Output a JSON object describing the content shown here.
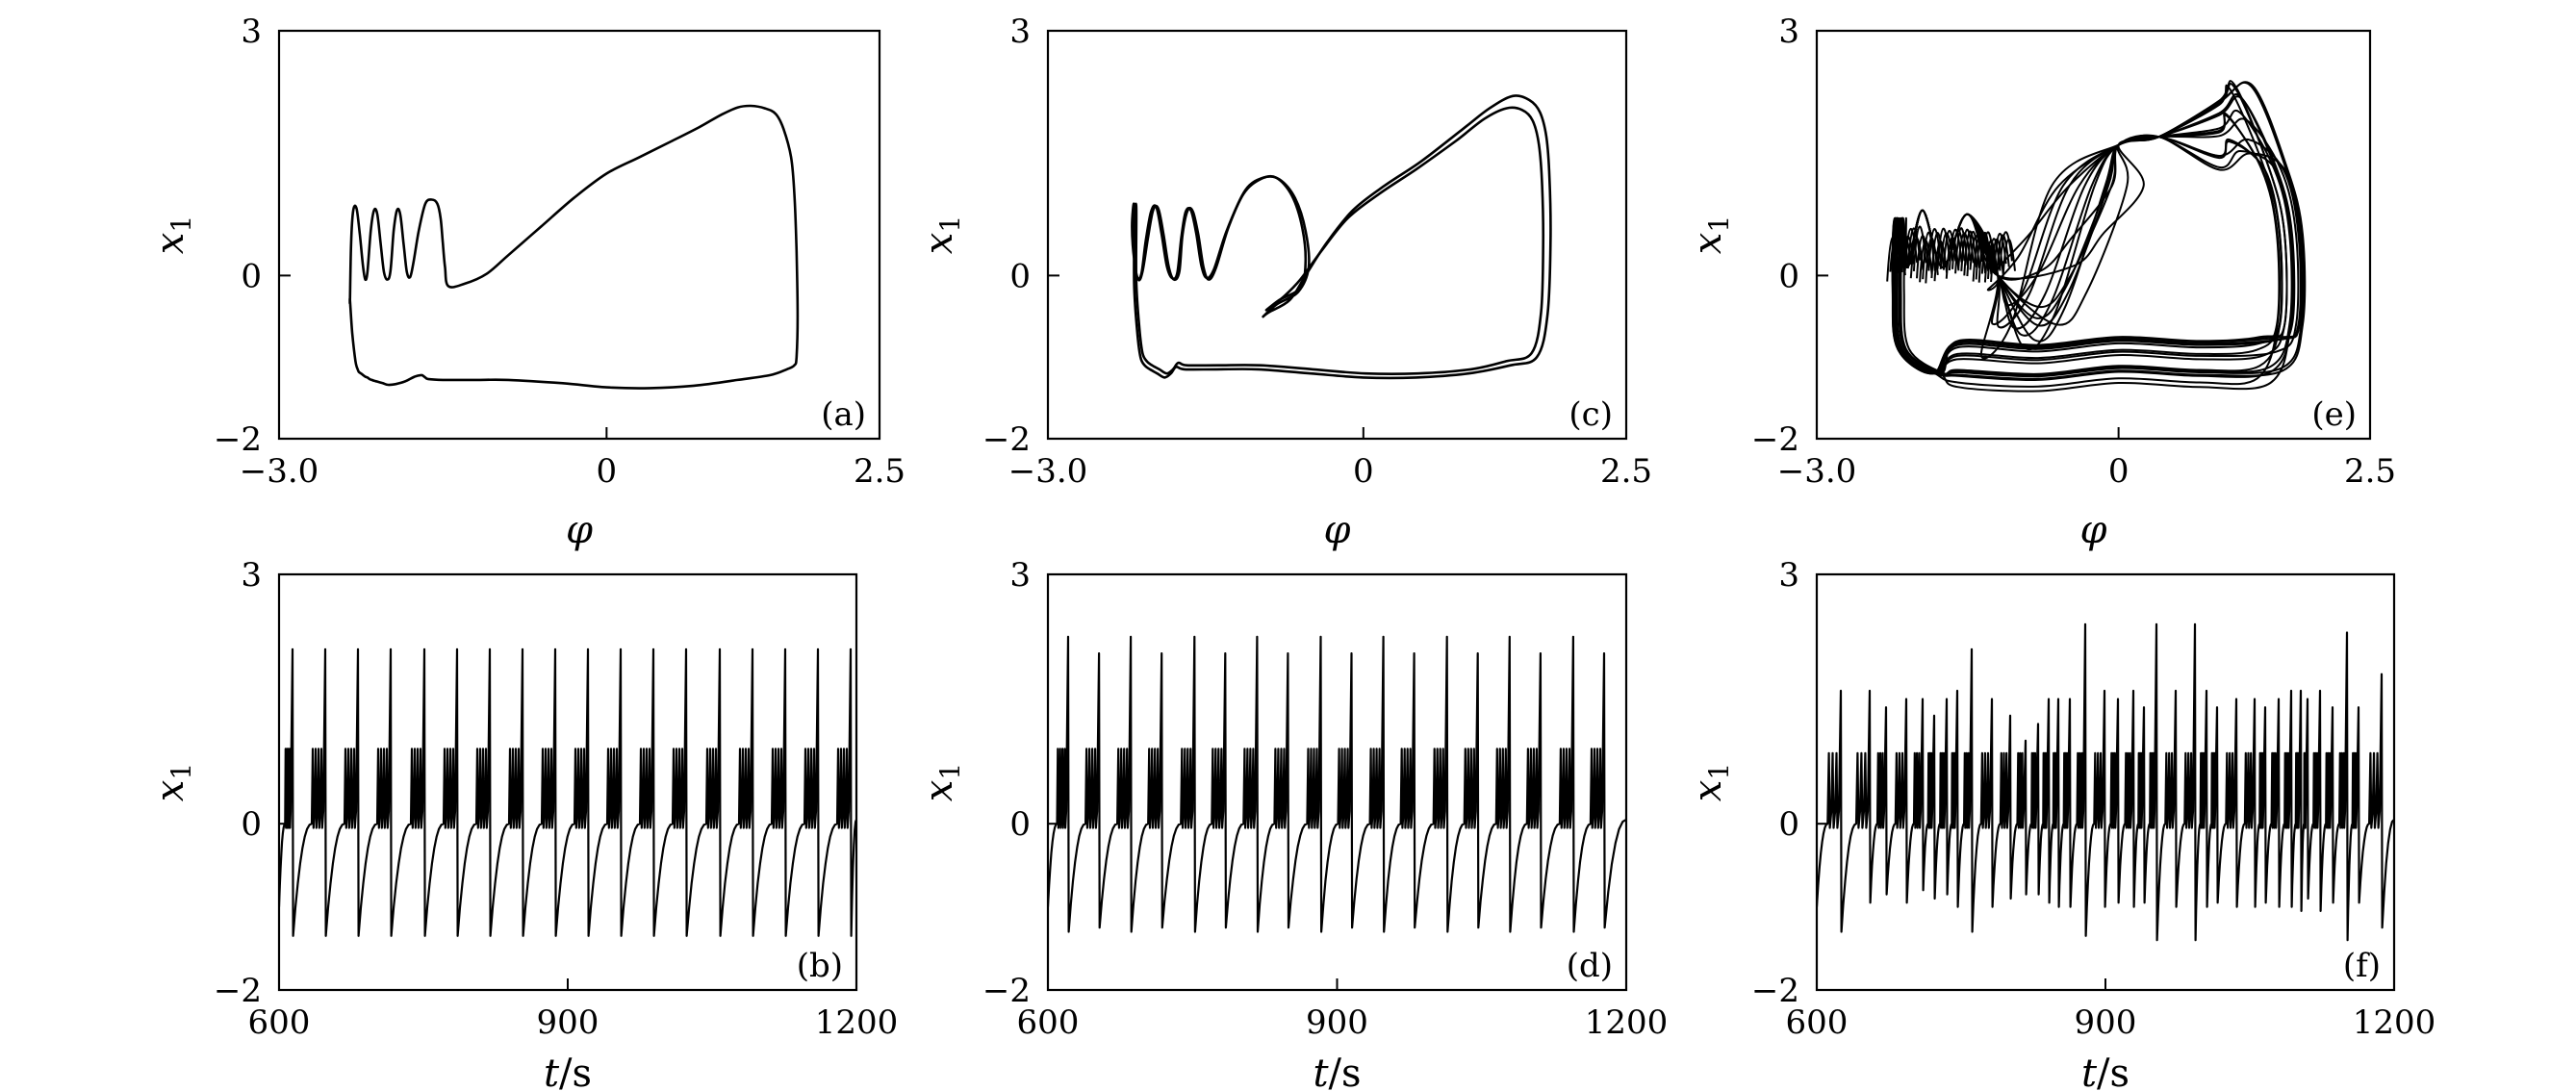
{
  "figure": {
    "background": "#ffffff",
    "line_color": "#000000",
    "panels_count": 6
  },
  "chart_data": [
    {
      "id": "a",
      "type": "line",
      "panel_label": "(a)",
      "kind": "phase",
      "xlabel": "φ",
      "ylabel_main": "x",
      "ylabel_sub": "1",
      "xlim": [
        -3.0,
        2.5
      ],
      "ylim": [
        -2,
        3
      ],
      "xtick_values": [
        -3.0,
        0,
        2.5
      ],
      "xtick_labels": [
        "−3.0",
        "0",
        "2.5"
      ],
      "ytick_values": [
        3,
        0,
        -2
      ],
      "ytick_labels": [
        "3",
        "0",
        "−2"
      ],
      "series": [
        {
          "x": [
            -2.35,
            -2.33,
            -2.3,
            -2.28,
            -2.27,
            -2.25,
            -2.23,
            -2.21,
            -2.19,
            -2.17,
            -2.15,
            -2.13,
            -2.1,
            -2.05,
            -2.0,
            -1.93,
            -1.85,
            -1.76,
            -1.7,
            -1.68,
            -1.66,
            -1.63,
            -1.5,
            -1.2,
            -0.9,
            -0.4,
            0.0,
            0.4,
            0.8,
            1.2,
            1.5,
            1.65,
            1.72,
            1.74,
            1.75,
            1.74,
            1.72,
            1.69,
            1.62,
            1.55,
            1.45,
            1.32,
            1.2,
            1.05,
            0.85,
            0.6,
            0.3,
            0.0,
            -0.3,
            -0.6,
            -0.9,
            -1.1,
            -1.3,
            -1.45,
            -1.48,
            -1.5,
            -1.52,
            -1.55,
            -1.6,
            -1.66,
            -1.72,
            -1.77,
            -1.8,
            -1.83,
            -1.86,
            -1.89,
            -1.92,
            -1.95,
            -1.98,
            -2.01,
            -2.04,
            -2.07,
            -2.1,
            -2.13,
            -2.16,
            -2.19,
            -2.21,
            -2.23,
            -2.26,
            -2.29,
            -2.32,
            -2.34,
            -2.35
          ],
          "y": [
            -0.3,
            -0.7,
            -1.05,
            -1.15,
            -1.18,
            -1.2,
            -1.22,
            -1.24,
            -1.25,
            -1.27,
            -1.28,
            -1.29,
            -1.3,
            -1.32,
            -1.34,
            -1.33,
            -1.3,
            -1.24,
            -1.22,
            -1.23,
            -1.25,
            -1.27,
            -1.28,
            -1.28,
            -1.28,
            -1.32,
            -1.37,
            -1.38,
            -1.35,
            -1.28,
            -1.22,
            -1.15,
            -1.1,
            -1.0,
            -0.5,
            0.3,
            1.0,
            1.45,
            1.8,
            1.98,
            2.05,
            2.08,
            2.06,
            1.97,
            1.82,
            1.65,
            1.45,
            1.25,
            0.95,
            0.6,
            0.25,
            0.02,
            -0.1,
            -0.13,
            0.1,
            0.4,
            0.7,
            0.88,
            0.93,
            0.88,
            0.55,
            0.15,
            -0.02,
            0.05,
            0.4,
            0.75,
            0.8,
            0.55,
            0.05,
            -0.05,
            0.05,
            0.4,
            0.75,
            0.8,
            0.55,
            0.05,
            -0.05,
            0.1,
            0.5,
            0.82,
            0.8,
            0.4,
            -0.3
          ]
        }
      ]
    },
    {
      "id": "b",
      "type": "line",
      "panel_label": "(b)",
      "kind": "time",
      "xlabel_main": "t",
      "xlabel_unit": "/s",
      "ylabel_main": "x",
      "ylabel_sub": "1",
      "xlim": [
        600,
        1200
      ],
      "ylim": [
        -2,
        3
      ],
      "xtick_values": [
        600,
        900,
        1200
      ],
      "xtick_labels": [
        "600",
        "900",
        "1200"
      ],
      "ytick_values": [
        3,
        0,
        -2
      ],
      "ytick_labels": [
        "3",
        "0",
        "−2"
      ],
      "series": [
        {
          "spike_times": [
            614,
            648,
            682,
            716,
            751,
            785,
            819,
            853,
            887,
            921,
            955,
            989,
            1023,
            1058,
            1092,
            1126,
            1160,
            1194
          ],
          "spike_peaks": [
            2.1,
            2.1,
            2.1,
            2.1,
            2.1,
            2.1,
            2.1,
            2.1,
            2.1,
            2.1,
            2.1,
            2.1,
            2.1,
            2.1,
            2.1,
            2.1,
            2.1,
            2.1
          ],
          "trough_values": [
            -1.35,
            -1.35,
            -1.35,
            -1.35,
            -1.35,
            -1.35,
            -1.35,
            -1.35,
            -1.35,
            -1.35,
            -1.35,
            -1.35,
            -1.35,
            -1.35,
            -1.35,
            -1.35,
            -1.35,
            -1.35
          ],
          "burst_spike_peak": 0.9,
          "burst_spike_min": -0.05,
          "bursts_per_cycle": 4,
          "initial_value": -1.0
        }
      ]
    },
    {
      "id": "c",
      "type": "line",
      "panel_label": "(c)",
      "kind": "phase",
      "xlabel": "φ",
      "ylabel_main": "x",
      "ylabel_sub": "1",
      "xlim": [
        -3.0,
        2.5
      ],
      "ylim": [
        -2,
        3
      ],
      "xtick_values": [
        -3.0,
        0,
        2.5
      ],
      "xtick_labels": [
        "−3.0",
        "0",
        "2.5"
      ],
      "ytick_values": [
        3,
        0,
        -2
      ],
      "ytick_labels": [
        "3",
        "0",
        "−2"
      ],
      "series": [
        {
          "x": [
            -2.18,
            -2.15,
            -2.12,
            -2.08,
            -2.03,
            -1.96,
            -1.89,
            -1.83,
            -1.78,
            -1.7,
            -1.4,
            -1.0,
            -0.5,
            0.0,
            0.5,
            1.0,
            1.4,
            1.65,
            1.75,
            1.78,
            1.77,
            1.74,
            1.68,
            1.58,
            1.42,
            1.2,
            0.95,
            0.55,
            0.2,
            -0.1,
            -0.35,
            -0.55,
            -0.7,
            -0.9,
            -0.95,
            -0.82,
            -0.62,
            -0.52,
            -0.55,
            -0.65,
            -0.8,
            -0.95,
            -1.12,
            -1.28,
            -1.4,
            -1.47,
            -1.52,
            -1.57,
            -1.62,
            -1.67,
            -1.72,
            -1.75,
            -1.8,
            -1.85,
            -1.9,
            -1.95,
            -2.0,
            -2.05,
            -2.1,
            -2.14,
            -2.18,
            -2.2,
            -2.18
          ],
          "y": [
            -0.1,
            -0.7,
            -1.0,
            -1.1,
            -1.15,
            -1.2,
            -1.25,
            -1.2,
            -1.12,
            -1.15,
            -1.15,
            -1.15,
            -1.2,
            -1.25,
            -1.25,
            -1.2,
            -1.1,
            -1.0,
            -0.5,
            0.4,
            1.2,
            1.7,
            2.0,
            2.15,
            2.2,
            2.05,
            1.8,
            1.4,
            1.1,
            0.8,
            0.4,
            0.0,
            -0.3,
            -0.45,
            -0.5,
            -0.35,
            -0.2,
            0.1,
            0.55,
            0.95,
            1.18,
            1.2,
            1.05,
            0.6,
            0.1,
            -0.05,
            0.1,
            0.5,
            0.78,
            0.8,
            0.5,
            0.05,
            -0.05,
            0.1,
            0.5,
            0.82,
            0.8,
            0.45,
            0.05,
            -0.05,
            0.2,
            0.6,
            0.85
          ]
        },
        {
          "x": [
            -2.16,
            -2.13,
            -2.1,
            -2.06,
            -2.01,
            -1.94,
            -1.87,
            -1.81,
            -1.76,
            -1.68,
            -1.38,
            -0.98,
            -0.48,
            0.02,
            0.52,
            1.02,
            1.36,
            1.6,
            1.69,
            1.71,
            1.7,
            1.67,
            1.61,
            1.51,
            1.36,
            1.15,
            0.88,
            0.5,
            0.15,
            -0.15,
            -0.4,
            -0.6,
            -0.75,
            -0.88,
            -0.92,
            -0.8,
            -0.6,
            -0.55,
            -0.58,
            -0.68,
            -0.83,
            -0.98,
            -1.14,
            -1.3,
            -1.42,
            -1.49,
            -1.54,
            -1.59,
            -1.64,
            -1.69,
            -1.73,
            -1.77,
            -1.82,
            -1.87,
            -1.92,
            -1.97,
            -2.02,
            -2.07,
            -2.11,
            -2.15,
            -2.18,
            -2.19,
            -2.16
          ],
          "y": [
            -0.05,
            -0.65,
            -0.95,
            -1.05,
            -1.1,
            -1.15,
            -1.2,
            -1.15,
            -1.07,
            -1.1,
            -1.1,
            -1.1,
            -1.15,
            -1.2,
            -1.2,
            -1.15,
            -1.05,
            -0.95,
            -0.45,
            0.4,
            1.1,
            1.6,
            1.9,
            2.03,
            2.05,
            1.92,
            1.65,
            1.3,
            1.0,
            0.7,
            0.3,
            -0.05,
            -0.25,
            -0.38,
            -0.42,
            -0.3,
            -0.15,
            0.15,
            0.58,
            0.98,
            1.2,
            1.18,
            1.0,
            0.55,
            0.08,
            -0.03,
            0.12,
            0.52,
            0.8,
            0.78,
            0.48,
            0.03,
            -0.03,
            0.12,
            0.52,
            0.84,
            0.78,
            0.42,
            0.03,
            -0.03,
            0.22,
            0.62,
            0.85
          ]
        }
      ]
    },
    {
      "id": "d",
      "type": "line",
      "panel_label": "(d)",
      "kind": "time",
      "xlabel_main": "t",
      "xlabel_unit": "/s",
      "ylabel_main": "x",
      "ylabel_sub": "1",
      "xlim": [
        600,
        1200
      ],
      "ylim": [
        -2,
        3
      ],
      "xtick_values": [
        600,
        900,
        1200
      ],
      "xtick_labels": [
        "600",
        "900",
        "1200"
      ],
      "ytick_values": [
        3,
        0,
        -2
      ],
      "ytick_labels": [
        "3",
        "0",
        "−2"
      ],
      "series": [
        {
          "spike_times": [
            621,
            653,
            686,
            718,
            752,
            784,
            817,
            849,
            883,
            915,
            948,
            980,
            1014,
            1046,
            1079,
            1111,
            1145,
            1177
          ],
          "spike_peaks": [
            2.25,
            2.05,
            2.25,
            2.05,
            2.25,
            2.05,
            2.25,
            2.05,
            2.25,
            2.05,
            2.25,
            2.05,
            2.25,
            2.05,
            2.25,
            2.05,
            2.25,
            2.05
          ],
          "trough_values": [
            -1.3,
            -1.25,
            -1.3,
            -1.25,
            -1.3,
            -1.25,
            -1.3,
            -1.25,
            -1.3,
            -1.25,
            -1.3,
            -1.25,
            -1.3,
            -1.25,
            -1.3,
            -1.25,
            -1.3,
            -1.25
          ],
          "burst_spike_peak": 0.9,
          "burst_spike_min": -0.05,
          "bursts_per_cycle": 4,
          "initial_value": -1.0
        }
      ]
    },
    {
      "id": "e",
      "type": "line",
      "panel_label": "(e)",
      "kind": "phase-chaotic",
      "xlabel": "φ",
      "ylabel_main": "x",
      "ylabel_sub": "1",
      "xlim": [
        -3.0,
        2.5
      ],
      "ylim": [
        -2,
        3
      ],
      "xtick_values": [
        -3.0,
        0,
        2.5
      ],
      "xtick_labels": [
        "−3.0",
        "0",
        "2.5"
      ],
      "ytick_values": [
        3,
        0,
        -2
      ],
      "ytick_labels": [
        "3",
        "0",
        "−2"
      ],
      "series": [
        {
          "loop_count": 16,
          "peak_range": [
            1.4,
            2.4
          ],
          "right_edge_range": [
            1.55,
            1.85
          ],
          "bottom_range": [
            -1.4,
            -0.8
          ],
          "inner_return_x_range": [
            -1.1,
            -0.1
          ],
          "burst_x_range": [
            -2.25,
            -1.1
          ]
        }
      ]
    },
    {
      "id": "f",
      "type": "line",
      "panel_label": "(f)",
      "kind": "time",
      "xlabel_main": "t",
      "xlabel_unit": "/s",
      "ylabel_main": "x",
      "ylabel_sub": "1",
      "xlim": [
        600,
        1200
      ],
      "ylim": [
        -2,
        3
      ],
      "xtick_values": [
        600,
        900,
        1200
      ],
      "xtick_labels": [
        "600",
        "900",
        "1200"
      ],
      "ytick_values": [
        3,
        0,
        -2
      ],
      "ytick_labels": [
        "3",
        "0",
        "−2"
      ],
      "series": [
        {
          "spike_times": [
            625,
            655,
            672,
            693,
            710,
            722,
            735,
            746,
            761,
            782,
            801,
            817,
            830,
            841,
            851,
            863,
            879,
            899,
            913,
            929,
            940,
            953,
            973,
            993,
            1005,
            1016,
            1036,
            1055,
            1066,
            1080,
            1093,
            1103,
            1110,
            1123,
            1136,
            1151,
            1163,
            1187
          ],
          "spike_peaks": [
            1.6,
            1.6,
            1.4,
            1.5,
            1.5,
            1.3,
            1.5,
            1.6,
            2.1,
            1.5,
            1.3,
            1.0,
            1.2,
            1.5,
            1.5,
            1.5,
            2.4,
            1.6,
            1.5,
            1.6,
            1.4,
            2.4,
            1.6,
            2.4,
            1.6,
            1.4,
            1.5,
            1.5,
            1.4,
            1.5,
            1.6,
            1.6,
            1.5,
            1.6,
            1.4,
            2.3,
            1.4,
            1.8
          ],
          "trough_values": [
            -1.3,
            -0.95,
            -0.85,
            -0.95,
            -0.8,
            -0.9,
            -0.85,
            -1.0,
            -1.3,
            -1.0,
            -0.9,
            -0.85,
            -0.85,
            -0.95,
            -1.0,
            -1.0,
            -1.35,
            -1.0,
            -0.95,
            -1.0,
            -0.95,
            -1.4,
            -1.0,
            -1.4,
            -1.0,
            -0.95,
            -1.0,
            -1.0,
            -0.95,
            -1.0,
            -1.0,
            -1.05,
            -0.9,
            -1.05,
            -0.95,
            -1.4,
            -0.95,
            -1.25
          ],
          "burst_spike_peak": 0.85,
          "burst_spike_min": -0.05,
          "bursts_per_cycle": 3,
          "initial_value": -1.0
        }
      ]
    }
  ]
}
